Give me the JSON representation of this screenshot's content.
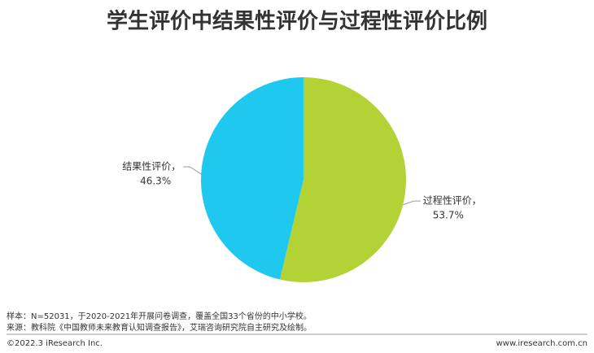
{
  "chart_data": {
    "type": "pie",
    "title": "学生评价中结果性评价与过程性评价比例",
    "categories": [
      "过程性评价，",
      "结果性评价，"
    ],
    "values": [
      53.7,
      46.3
    ],
    "value_labels": [
      "53.7%",
      "46.3%"
    ],
    "colors": [
      "#b2d235",
      "#1ec8ef"
    ],
    "notes": [
      "样本：N=52031，于2020-2021年开展问卷调查，覆盖全国33个省份的中小学校。",
      "来源：教科院《中国教师未来教育认知调查报告》，艾瑞咨询研究院自主研究及绘制。"
    ],
    "footer_left": "©2022.3 iResearch Inc.",
    "footer_right": "www.iresearch.com.cn"
  }
}
